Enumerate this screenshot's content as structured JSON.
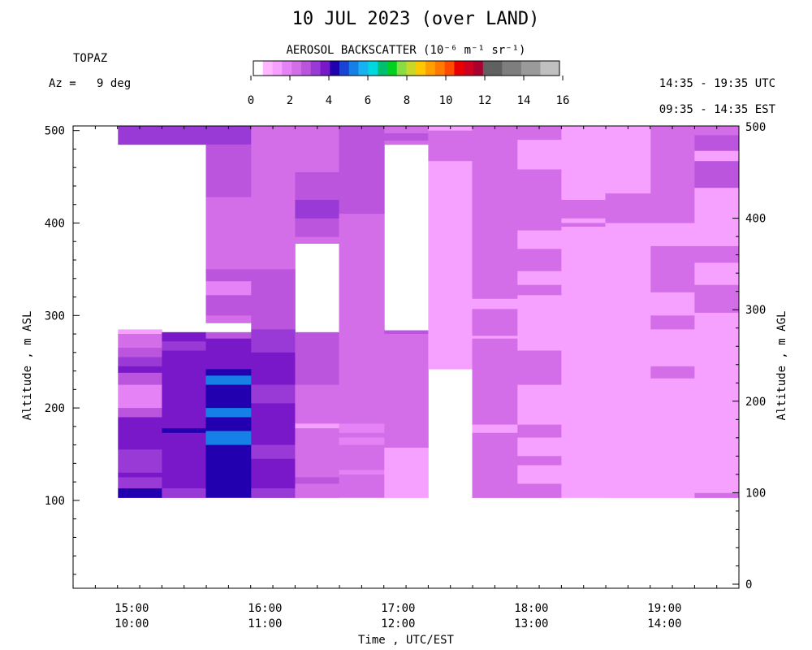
{
  "header": {
    "title": "10 JUL 2023 (over LAND)",
    "instrument": "TOPAZ",
    "azimuth": "Az =   9 deg",
    "utc_range": "14:35 - 19:35 UTC",
    "local_range": "09:35 - 14:35 EST"
  },
  "colorbar": {
    "title": "AEROSOL BACKSCATTER (10⁻⁶ m⁻¹ sr⁻¹)",
    "ticks": [
      "0",
      "2",
      "4",
      "6",
      "8",
      "10",
      "12",
      "14",
      "16"
    ],
    "colors": [
      "#ffffff",
      "#ffb8ff",
      "#f6a0ff",
      "#e582f5",
      "#d36ee8",
      "#bb55dd",
      "#9a3ad6",
      "#7818c8",
      "#2200b0",
      "#1a44d6",
      "#1680e6",
      "#16b2f2",
      "#00d8e0",
      "#00c070",
      "#00d020",
      "#88dd44",
      "#c8d828",
      "#ffc800",
      "#ffa000",
      "#ff7a00",
      "#ff4a00",
      "#e80000",
      "#cc0020",
      "#aa0030",
      "#606060",
      "#606060",
      "#7e7e7e",
      "#7e7e7e",
      "#9a9a9a",
      "#9a9a9a",
      "#c0c0c0",
      "#c0c0c0"
    ]
  },
  "axes": {
    "x_label": "Time , UTC/EST",
    "y_left_label": "Altitude , m ASL",
    "y_right_label": "Altitude , m AGL",
    "x_ticks": [
      {
        "utc": "15:00",
        "est": "10:00",
        "value": 15.0
      },
      {
        "utc": "16:00",
        "est": "11:00",
        "value": 16.0
      },
      {
        "utc": "17:00",
        "est": "12:00",
        "value": 17.0
      },
      {
        "utc": "18:00",
        "est": "13:00",
        "value": 18.0
      },
      {
        "utc": "19:00",
        "est": "14:00",
        "value": 19.0
      }
    ],
    "y_left_ticks": [
      "100",
      "200",
      "300",
      "400",
      "500"
    ],
    "y_right_ticks": [
      "0",
      "100",
      "200",
      "300",
      "400",
      "500"
    ]
  },
  "chart_data": {
    "type": "heatmap",
    "title": "10 JUL 2023 (over LAND)",
    "xlabel": "Time , UTC/EST",
    "ylabel": "Altitude , m ASL",
    "ylabel_right": "Altitude , m AGL",
    "xlim_utc_hours": [
      14.583,
      19.583
    ],
    "ylim_m_asl": [
      5,
      505
    ],
    "yright_offset_m": 100,
    "value_units": "10^-6 m^-1 sr^-1",
    "colorscale_range": [
      0,
      16
    ],
    "columns": [
      {
        "t0": 14.92,
        "t1": 15.25,
        "cells": [
          {
            "y0": 485,
            "y1": 505,
            "v": 3.0
          },
          {
            "y0": 280,
            "y1": 285,
            "v": 1.0
          },
          {
            "y0": 265,
            "y1": 280,
            "v": 2.2
          },
          {
            "y0": 255,
            "y1": 265,
            "v": 2.6
          },
          {
            "y0": 245,
            "y1": 255,
            "v": 3.0
          },
          {
            "y0": 238,
            "y1": 245,
            "v": 3.6
          },
          {
            "y0": 225,
            "y1": 238,
            "v": 2.6
          },
          {
            "y0": 200,
            "y1": 225,
            "v": 1.6
          },
          {
            "y0": 190,
            "y1": 200,
            "v": 2.6
          },
          {
            "y0": 155,
            "y1": 190,
            "v": 3.6
          },
          {
            "y0": 130,
            "y1": 155,
            "v": 3.0
          },
          {
            "y0": 125,
            "y1": 130,
            "v": 3.8
          },
          {
            "y0": 113,
            "y1": 125,
            "v": 3.3
          },
          {
            "y0": 103,
            "y1": 113,
            "v": 4.0
          }
        ]
      },
      {
        "t0": 15.25,
        "t1": 15.58,
        "cells": [
          {
            "y0": 485,
            "y1": 505,
            "v": 3.0
          },
          {
            "y0": 272,
            "y1": 282,
            "v": 3.8
          },
          {
            "y0": 262,
            "y1": 272,
            "v": 3.3
          },
          {
            "y0": 215,
            "y1": 262,
            "v": 3.6
          },
          {
            "y0": 178,
            "y1": 215,
            "v": 3.6
          },
          {
            "y0": 173,
            "y1": 178,
            "v": 4.2
          },
          {
            "y0": 113,
            "y1": 173,
            "v": 3.6
          },
          {
            "y0": 103,
            "y1": 113,
            "v": 3.0
          }
        ]
      },
      {
        "t0": 15.58,
        "t1": 15.92,
        "cells": [
          {
            "y0": 485,
            "y1": 505,
            "v": 3.3
          },
          {
            "y0": 428,
            "y1": 485,
            "v": 2.6
          },
          {
            "y0": 350,
            "y1": 428,
            "v": 2.0
          },
          {
            "y0": 337,
            "y1": 350,
            "v": 2.6
          },
          {
            "y0": 322,
            "y1": 337,
            "v": 1.6
          },
          {
            "y0": 300,
            "y1": 322,
            "v": 2.6
          },
          {
            "y0": 292,
            "y1": 300,
            "v": 2.0
          },
          {
            "y0": 275,
            "y1": 282,
            "v": 2.8
          },
          {
            "y0": 242,
            "y1": 275,
            "v": 3.6
          },
          {
            "y0": 235,
            "y1": 242,
            "v": 4.0
          },
          {
            "y0": 225,
            "y1": 235,
            "v": 5.0
          },
          {
            "y0": 200,
            "y1": 225,
            "v": 4.4
          },
          {
            "y0": 190,
            "y1": 200,
            "v": 5.0
          },
          {
            "y0": 183,
            "y1": 190,
            "v": 4.4
          },
          {
            "y0": 175,
            "y1": 183,
            "v": 4.0
          },
          {
            "y0": 160,
            "y1": 175,
            "v": 5.0
          },
          {
            "y0": 152,
            "y1": 160,
            "v": 4.0
          },
          {
            "y0": 133,
            "y1": 152,
            "v": 4.4
          },
          {
            "y0": 112,
            "y1": 133,
            "v": 4.0
          },
          {
            "y0": 103,
            "y1": 112,
            "v": 4.2
          }
        ]
      },
      {
        "t0": 15.92,
        "t1": 16.25,
        "cells": [
          {
            "y0": 350,
            "y1": 505,
            "v": 2.0
          },
          {
            "y0": 285,
            "y1": 350,
            "v": 2.6
          },
          {
            "y0": 275,
            "y1": 285,
            "v": 3.0
          },
          {
            "y0": 260,
            "y1": 275,
            "v": 3.3
          },
          {
            "y0": 225,
            "y1": 260,
            "v": 3.6
          },
          {
            "y0": 205,
            "y1": 225,
            "v": 3.3
          },
          {
            "y0": 200,
            "y1": 205,
            "v": 3.6
          },
          {
            "y0": 160,
            "y1": 200,
            "v": 3.6
          },
          {
            "y0": 145,
            "y1": 160,
            "v": 3.3
          },
          {
            "y0": 113,
            "y1": 145,
            "v": 3.6
          },
          {
            "y0": 103,
            "y1": 113,
            "v": 3.0
          }
        ]
      },
      {
        "t0": 16.25,
        "t1": 16.58,
        "cells": [
          {
            "y0": 495,
            "y1": 505,
            "v": 2.0
          },
          {
            "y0": 455,
            "y1": 495,
            "v": 2.0
          },
          {
            "y0": 425,
            "y1": 455,
            "v": 2.6
          },
          {
            "y0": 405,
            "y1": 425,
            "v": 3.3
          },
          {
            "y0": 385,
            "y1": 405,
            "v": 2.6
          },
          {
            "y0": 378,
            "y1": 385,
            "v": 2.2
          },
          {
            "y0": 260,
            "y1": 282,
            "v": 2.6
          },
          {
            "y0": 225,
            "y1": 260,
            "v": 2.6
          },
          {
            "y0": 183,
            "y1": 225,
            "v": 2.0
          },
          {
            "y0": 178,
            "y1": 183,
            "v": 1.4
          },
          {
            "y0": 125,
            "y1": 178,
            "v": 2.0
          },
          {
            "y0": 118,
            "y1": 125,
            "v": 2.6
          },
          {
            "y0": 103,
            "y1": 118,
            "v": 2.0
          }
        ]
      },
      {
        "t0": 16.58,
        "t1": 16.92,
        "cells": [
          {
            "y0": 410,
            "y1": 505,
            "v": 2.6
          },
          {
            "y0": 285,
            "y1": 410,
            "v": 2.2
          },
          {
            "y0": 183,
            "y1": 285,
            "v": 2.2
          },
          {
            "y0": 173,
            "y1": 183,
            "v": 1.6
          },
          {
            "y0": 168,
            "y1": 173,
            "v": 2.0
          },
          {
            "y0": 160,
            "y1": 168,
            "v": 1.6
          },
          {
            "y0": 133,
            "y1": 160,
            "v": 2.0
          },
          {
            "y0": 128,
            "y1": 133,
            "v": 1.6
          },
          {
            "y0": 103,
            "y1": 128,
            "v": 2.0
          }
        ]
      },
      {
        "t0": 16.92,
        "t1": 17.25,
        "cells": [
          {
            "y0": 497,
            "y1": 505,
            "v": 2.0
          },
          {
            "y0": 489,
            "y1": 497,
            "v": 2.6
          },
          {
            "y0": 485,
            "y1": 489,
            "v": 2.0
          },
          {
            "y0": 280,
            "y1": 284,
            "v": 2.6
          },
          {
            "y0": 157,
            "y1": 280,
            "v": 2.0
          },
          {
            "y0": 103,
            "y1": 157,
            "v": 1.2
          }
        ]
      },
      {
        "t0": 17.25,
        "t1": 17.58,
        "cells": [
          {
            "y0": 500,
            "y1": 505,
            "v": 1.2
          },
          {
            "y0": 467,
            "y1": 500,
            "v": 2.0
          },
          {
            "y0": 242,
            "y1": 467,
            "v": 1.2
          }
        ]
      },
      {
        "t0": 17.58,
        "t1": 17.92,
        "cells": [
          {
            "y0": 318,
            "y1": 505,
            "v": 2.0
          },
          {
            "y0": 307,
            "y1": 318,
            "v": 1.2
          },
          {
            "y0": 278,
            "y1": 307,
            "v": 2.0
          },
          {
            "y0": 275,
            "y1": 278,
            "v": 1.2
          },
          {
            "y0": 182,
            "y1": 275,
            "v": 2.0
          },
          {
            "y0": 173,
            "y1": 182,
            "v": 1.2
          },
          {
            "y0": 103,
            "y1": 173,
            "v": 2.0
          }
        ]
      },
      {
        "t0": 17.92,
        "t1": 18.25,
        "cells": [
          {
            "y0": 490,
            "y1": 505,
            "v": 2.0
          },
          {
            "y0": 458,
            "y1": 490,
            "v": 1.2
          },
          {
            "y0": 392,
            "y1": 458,
            "v": 2.0
          },
          {
            "y0": 372,
            "y1": 392,
            "v": 1.2
          },
          {
            "y0": 348,
            "y1": 372,
            "v": 2.0
          },
          {
            "y0": 333,
            "y1": 348,
            "v": 1.2
          },
          {
            "y0": 322,
            "y1": 333,
            "v": 2.0
          },
          {
            "y0": 262,
            "y1": 322,
            "v": 1.2
          },
          {
            "y0": 225,
            "y1": 262,
            "v": 2.0
          },
          {
            "y0": 182,
            "y1": 225,
            "v": 1.2
          },
          {
            "y0": 168,
            "y1": 182,
            "v": 2.0
          },
          {
            "y0": 148,
            "y1": 168,
            "v": 1.2
          },
          {
            "y0": 138,
            "y1": 148,
            "v": 2.0
          },
          {
            "y0": 118,
            "y1": 138,
            "v": 1.2
          },
          {
            "y0": 103,
            "y1": 118,
            "v": 2.0
          }
        ]
      },
      {
        "t0": 18.25,
        "t1": 18.58,
        "cells": [
          {
            "y0": 425,
            "y1": 505,
            "v": 1.2
          },
          {
            "y0": 405,
            "y1": 425,
            "v": 2.0
          },
          {
            "y0": 400,
            "y1": 405,
            "v": 1.2
          },
          {
            "y0": 396,
            "y1": 400,
            "v": 2.0
          },
          {
            "y0": 103,
            "y1": 396,
            "v": 1.2
          }
        ]
      },
      {
        "t0": 18.58,
        "t1": 18.92,
        "cells": [
          {
            "y0": 432,
            "y1": 505,
            "v": 1.2
          },
          {
            "y0": 400,
            "y1": 432,
            "v": 2.0
          },
          {
            "y0": 300,
            "y1": 400,
            "v": 1.2
          },
          {
            "y0": 292,
            "y1": 300,
            "v": 1.0
          },
          {
            "y0": 103,
            "y1": 292,
            "v": 1.2
          }
        ]
      },
      {
        "t0": 18.92,
        "t1": 19.25,
        "cells": [
          {
            "y0": 400,
            "y1": 505,
            "v": 2.2
          },
          {
            "y0": 375,
            "y1": 400,
            "v": 1.2
          },
          {
            "y0": 325,
            "y1": 375,
            "v": 2.2
          },
          {
            "y0": 300,
            "y1": 325,
            "v": 1.2
          },
          {
            "y0": 285,
            "y1": 300,
            "v": 2.0
          },
          {
            "y0": 245,
            "y1": 285,
            "v": 1.2
          },
          {
            "y0": 232,
            "y1": 245,
            "v": 2.2
          },
          {
            "y0": 103,
            "y1": 232,
            "v": 1.2
          }
        ]
      },
      {
        "t0": 19.25,
        "t1": 19.583,
        "cells": [
          {
            "y0": 495,
            "y1": 505,
            "v": 2.0
          },
          {
            "y0": 478,
            "y1": 495,
            "v": 2.6
          },
          {
            "y0": 467,
            "y1": 478,
            "v": 1.2
          },
          {
            "y0": 438,
            "y1": 467,
            "v": 2.6
          },
          {
            "y0": 375,
            "y1": 438,
            "v": 1.2
          },
          {
            "y0": 357,
            "y1": 375,
            "v": 2.2
          },
          {
            "y0": 333,
            "y1": 357,
            "v": 1.2
          },
          {
            "y0": 303,
            "y1": 333,
            "v": 2.2
          },
          {
            "y0": 108,
            "y1": 303,
            "v": 1.2
          },
          {
            "y0": 103,
            "y1": 108,
            "v": 2.0
          }
        ]
      }
    ]
  }
}
